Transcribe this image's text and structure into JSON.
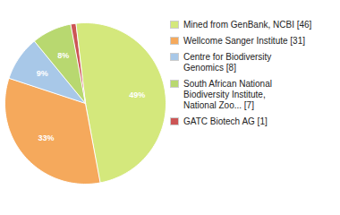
{
  "chart_data": {
    "type": "pie",
    "categories": [
      "Mined from GenBank, NCBI [46]",
      "Wellcome Sanger Institute [31]",
      "Centre for Biodiversity\nGenomics [8]",
      "South African National\nBiodiversity Institute,\nNational Zoo... [7]",
      "GATC Biotech AG [1]"
    ],
    "values": [
      49,
      33,
      9,
      8,
      1
    ],
    "value_labels": [
      "49%",
      "33%",
      "9%",
      "8%",
      null
    ],
    "colors": [
      "#d4e87c",
      "#f5a95c",
      "#a8c8e8",
      "#b8d870",
      "#cc5555"
    ],
    "data_labels": true,
    "legend": "right"
  }
}
